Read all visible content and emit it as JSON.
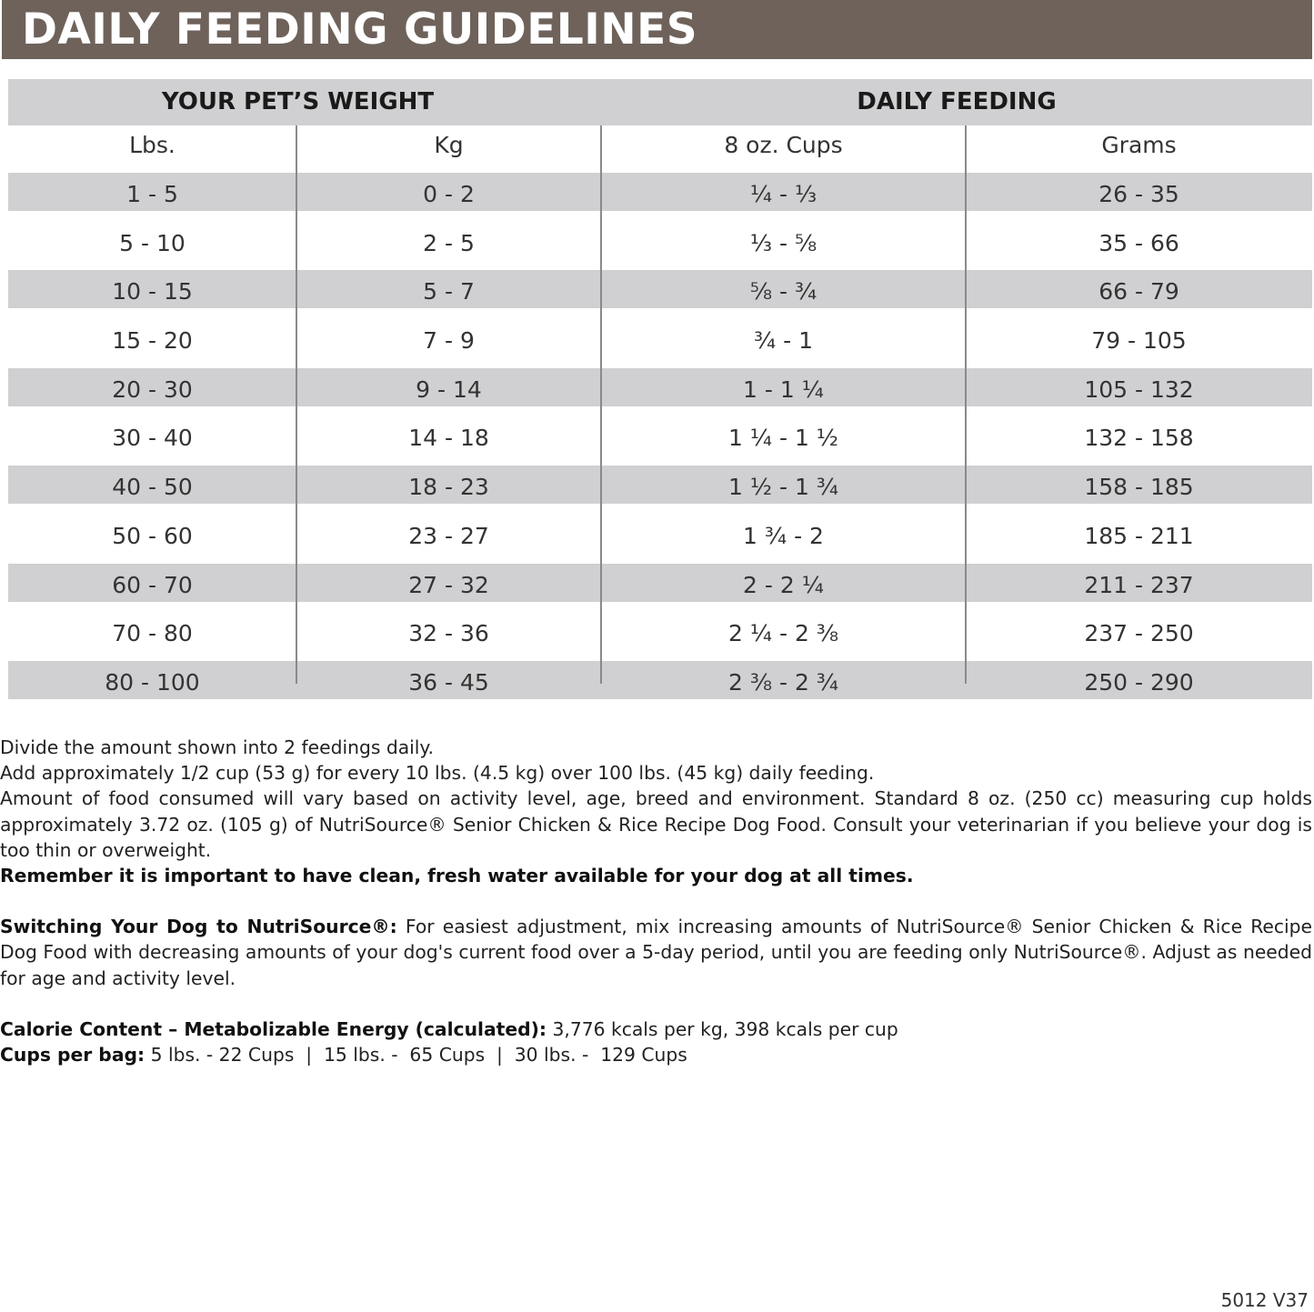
{
  "title": "DAILY FEEDING GUIDELINES",
  "table": {
    "group_headers": [
      "YOUR PET’S WEIGHT",
      "DAILY FEEDING"
    ],
    "columns": [
      "Lbs.",
      "Kg",
      "8 oz. Cups",
      "Grams"
    ],
    "rows": [
      [
        "1 - 5",
        "0 - 2",
        "¹⁄₄ - ¹⁄₃",
        "26 - 35"
      ],
      [
        "5 - 10",
        "2 - 5",
        "¹⁄₃ - ⁵⁄₈",
        "35 - 66"
      ],
      [
        "10 - 15",
        "5 - 7",
        "⁵⁄₈ - ³⁄₄",
        "66 - 79"
      ],
      [
        "15 - 20",
        "7 - 9",
        "³⁄₄ - 1",
        "79 - 105"
      ],
      [
        "20 - 30",
        "9 - 14",
        "1 - 1 ¹⁄₄",
        "105 - 132"
      ],
      [
        "30 - 40",
        "14 - 18",
        "1 ¹⁄₄ - 1 ¹⁄₂",
        "132 - 158"
      ],
      [
        "40 - 50",
        "18 - 23",
        "1 ¹⁄₂ - 1 ³⁄₄",
        "158 - 185"
      ],
      [
        "50 - 60",
        "23 - 27",
        "1 ³⁄₄ - 2",
        "185 - 211"
      ],
      [
        "60 - 70",
        "27 - 32",
        "2 - 2 ¹⁄₄",
        "211 - 237"
      ],
      [
        "70 - 80",
        "32 - 36",
        "2 ¹⁄₄ - 2 ³⁄₈",
        "237 - 250"
      ],
      [
        "80 - 100",
        "36 - 45",
        "2 ³⁄₈ - 2 ³⁄₄",
        "250 - 290"
      ]
    ]
  },
  "notes": {
    "line1": "Divide the amount shown into 2 feedings daily.",
    "line2": "Add approximately 1/2 cup (53 g) for every 10 lbs. (4.5 kg) over 100 lbs. (45 kg) daily feeding.",
    "line3": "Amount of food consumed will vary based on activity level, age, breed and environment. Standard 8 oz. (250 cc) measuring cup holds approximately 3.72 oz. (105 g) of NutriSource® Senior Chicken & Rice Recipe Dog Food. Consult your veterinarian if you believe your dog is too thin or overweight.",
    "water": "Remember it is important to have clean, fresh water available for your dog at all times.",
    "switching_label": "Switching Your Dog to NutriSource®:",
    "switching_text": " For easiest adjustment, mix increasing amounts of NutriSource® Senior Chicken & Rice Recipe Dog Food with decreasing amounts of your dog's current food over a 5-day period, until you are feeding only NutriSource®. Adjust as needed for age and activity level.",
    "calorie_label": "Calorie Content – Metabolizable Energy (calculated):",
    "calorie_text": " 3,776 kcals per kg, 398 kcals per cup",
    "cups_label": "Cups per bag:",
    "cups_text": " 5 lbs. - 22 Cups  |  15 lbs. -  65 Cups  |  30 lbs. -  129 Cups"
  },
  "code": "5012 V37",
  "colors": {
    "banner": "#6e625a",
    "band": "#d0d0d2"
  }
}
